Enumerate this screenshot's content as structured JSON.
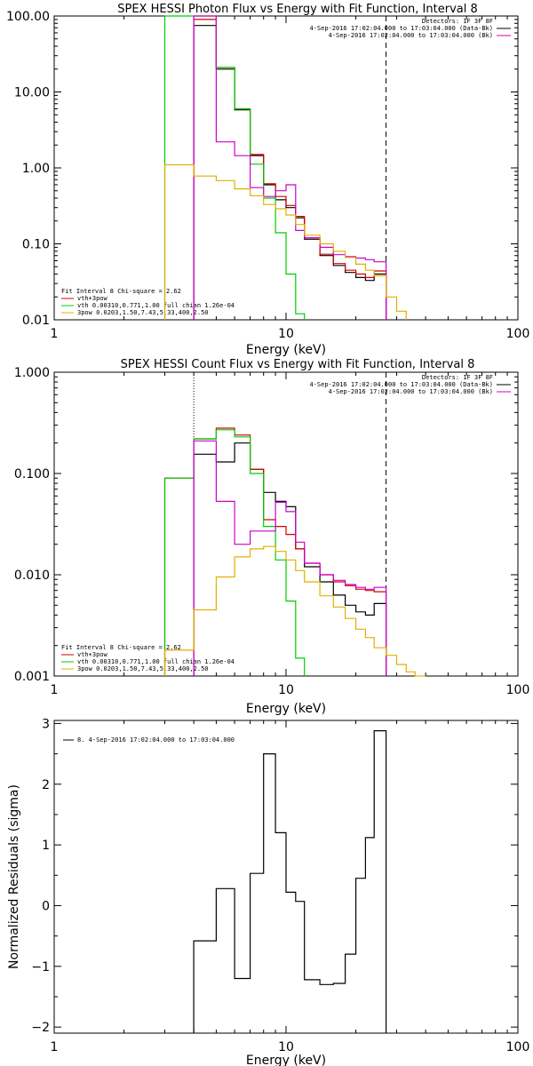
{
  "colors": {
    "black": "#000000",
    "red": "#d40000",
    "green": "#00cc00",
    "magenta": "#cc00cc",
    "yellow": "#e0b000"
  },
  "chart_data": [
    {
      "type": "line",
      "title": "SPEX HESSI Photon Flux vs Energy with Fit Function, Interval 8",
      "xlabel": "Energy (keV)",
      "ylabel": "",
      "xscale": "log",
      "yscale": "log",
      "xlim": [
        1,
        100
      ],
      "ylim": [
        0.01,
        100
      ],
      "xticks": [
        1,
        10,
        100
      ],
      "xtick_labels": [
        "1",
        "10",
        "100"
      ],
      "yticks": [
        0.01,
        0.1,
        1,
        10,
        100
      ],
      "ytick_labels": [
        "0.01",
        "0.10",
        "1.00",
        "10.00",
        "100.00"
      ],
      "legend_top": [
        "Detectors: 1F 3F 8F",
        "4-Sep-2016 17:02:04.000 to 17:03:04.000 (Data-Bk)",
        "4-Sep-2016 17:02:04.000 to 17:03:04.000 (Bk)"
      ],
      "legend_bottom": [
        "Fit Interval 8   Chi-square = 2.62",
        "vth+3pow",
        "vth 0.00310,0.771,1.00  full chian 1.26e-04",
        "3pow 0.0203,1.50,7.43,5.33,400,2.50"
      ],
      "vlines": [
        {
          "x": 4.0,
          "style": "dotted",
          "color": "magenta"
        },
        {
          "x": 27.0,
          "style": "dashed",
          "color": "black"
        }
      ],
      "edges": [
        3,
        4,
        5,
        6,
        7,
        8,
        9,
        10,
        11,
        12,
        14,
        16,
        18,
        20,
        22,
        24,
        27,
        30,
        33
      ],
      "series": [
        {
          "color": "black",
          "values": [
            null,
            75,
            20,
            5.8,
            1.45,
            0.6,
            0.38,
            0.3,
            0.22,
            0.115,
            0.07,
            0.052,
            0.042,
            0.036,
            0.033,
            0.04,
            null,
            null
          ]
        },
        {
          "color": "red",
          "values": [
            null,
            90,
            21,
            6.0,
            1.5,
            0.62,
            0.42,
            0.32,
            0.23,
            0.12,
            0.073,
            0.055,
            0.045,
            0.04,
            0.036,
            0.044,
            null,
            null
          ]
        },
        {
          "color": "green",
          "values": [
            100,
            100,
            21,
            6.0,
            1.12,
            0.4,
            0.14,
            0.04,
            0.012,
            null,
            null,
            null,
            null,
            null,
            null,
            null,
            null,
            null
          ]
        },
        {
          "color": "magenta",
          "values": [
            null,
            100,
            2.2,
            1.45,
            0.55,
            0.42,
            0.5,
            0.6,
            0.15,
            0.12,
            0.09,
            0.072,
            0.068,
            0.065,
            0.062,
            0.058,
            null,
            null
          ]
        },
        {
          "color": "yellow",
          "values": [
            1.1,
            0.78,
            0.68,
            0.53,
            0.43,
            0.33,
            0.29,
            0.24,
            0.18,
            0.13,
            0.1,
            0.08,
            0.066,
            0.054,
            0.045,
            0.038,
            0.02,
            0.013
          ]
        }
      ]
    },
    {
      "type": "line",
      "title": "SPEX HESSI Count Flux vs Energy with Fit Function, Interval 8",
      "xlabel": "Energy (keV)",
      "ylabel": "",
      "xscale": "log",
      "yscale": "log",
      "xlim": [
        1,
        100
      ],
      "ylim": [
        0.001,
        1
      ],
      "xticks": [
        1,
        10,
        100
      ],
      "xtick_labels": [
        "1",
        "10",
        "100"
      ],
      "yticks": [
        0.001,
        0.01,
        0.1,
        1
      ],
      "ytick_labels": [
        "0.001",
        "0.010",
        "0.100",
        "1.000"
      ],
      "legend_top": [
        "Detectors: 1F 3F 8F",
        "4-Sep-2016 17:02:04.000 to 17:03:04.000 (Data-Bk)",
        "4-Sep-2016 17:02:04.000 to 17:03:04.000 (Bk)"
      ],
      "legend_bottom": [
        "Fit Interval 8   Chi-square = 2.62",
        "vth+3pow",
        "vth 0.00310,0.771,1.00  full chian 1.26e-04",
        "3pow 0.0203,1.50,7.43,5.33,400,2.50"
      ],
      "vlines": [
        {
          "x": 4.0,
          "style": "dotted",
          "color": "black"
        },
        {
          "x": 27.0,
          "style": "dashed",
          "color": "black"
        }
      ],
      "edges": [
        3,
        4,
        5,
        6,
        7,
        8,
        9,
        10,
        11,
        12,
        14,
        16,
        18,
        20,
        22,
        24,
        27,
        30,
        33,
        36,
        40
      ],
      "series": [
        {
          "color": "black",
          "values": [
            null,
            0.155,
            0.13,
            0.2,
            0.11,
            0.065,
            0.053,
            0.047,
            0.018,
            0.012,
            0.0085,
            0.0063,
            0.005,
            0.0043,
            0.004,
            0.0052,
            null,
            null,
            null,
            null
          ]
        },
        {
          "color": "red",
          "values": [
            0.09,
            0.22,
            0.28,
            0.24,
            0.11,
            0.035,
            0.03,
            0.025,
            0.018,
            0.013,
            0.01,
            0.0085,
            0.0078,
            0.0072,
            0.007,
            0.0068,
            null,
            null,
            null,
            null
          ]
        },
        {
          "color": "green",
          "values": [
            0.09,
            0.22,
            0.27,
            0.23,
            0.1,
            0.03,
            0.014,
            0.0055,
            0.0015,
            null,
            null,
            null,
            null,
            null,
            null,
            null,
            null,
            null,
            null,
            null
          ]
        },
        {
          "color": "magenta",
          "values": [
            null,
            0.21,
            0.053,
            0.02,
            0.027,
            0.027,
            0.052,
            0.042,
            0.021,
            0.013,
            0.01,
            0.0088,
            0.008,
            0.0075,
            0.0072,
            0.0075,
            null,
            null,
            null,
            null
          ]
        },
        {
          "color": "yellow",
          "values": [
            0.0018,
            0.0045,
            0.0095,
            0.015,
            0.018,
            0.019,
            0.017,
            0.014,
            0.011,
            0.0085,
            0.0062,
            0.0048,
            0.0037,
            0.0029,
            0.0024,
            0.0019,
            0.0016,
            0.0013,
            0.0011,
            0.001
          ]
        }
      ]
    },
    {
      "type": "line",
      "title": "",
      "xlabel": "Energy (keV)",
      "ylabel": "Normalized Residuals (sigma)",
      "xscale": "log",
      "yscale": "linear",
      "xlim": [
        1,
        100
      ],
      "ylim": [
        -2.1,
        3.05
      ],
      "xticks": [
        1,
        10,
        100
      ],
      "xtick_labels": [
        "1",
        "10",
        "100"
      ],
      "yticks": [
        -2,
        -1,
        0,
        1,
        2,
        3
      ],
      "ytick_labels": [
        "−2",
        "−1",
        "0",
        "1",
        "2",
        "3"
      ],
      "legend": [
        "8.  4-Sep-2016 17:02:04.000 to 17:03:04.000"
      ],
      "edges": [
        4,
        5,
        6,
        7,
        8,
        9,
        10,
        11,
        12,
        14,
        16,
        18,
        20,
        22,
        24,
        27
      ],
      "series": [
        {
          "color": "black",
          "values": [
            -0.58,
            0.28,
            -1.2,
            0.53,
            2.5,
            1.2,
            0.22,
            0.07,
            -1.22,
            -1.3,
            -1.28,
            -0.8,
            0.45,
            1.12,
            2.88
          ]
        }
      ]
    }
  ]
}
